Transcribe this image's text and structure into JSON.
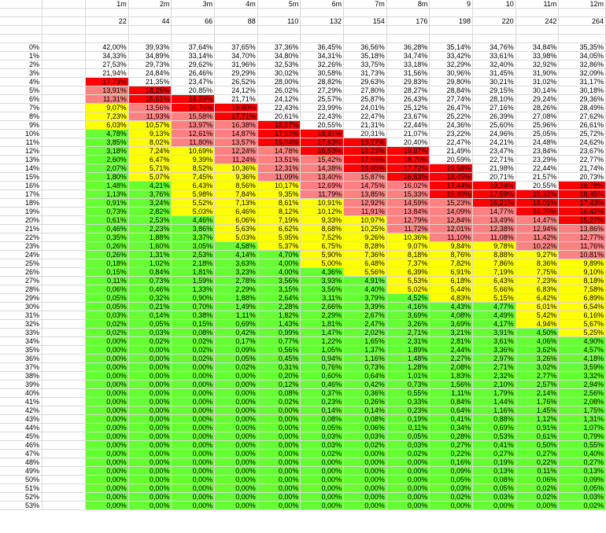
{
  "colors": {
    "red": "#ff0000",
    "pink": "#ff8080",
    "yellow": "#ffff00",
    "green": "#66ff33",
    "gridline": "#d8d8d8"
  },
  "headers": [
    "1m",
    "2m",
    "3m",
    "4m",
    "5m",
    "6m",
    "7m",
    "8m",
    "9",
    "10",
    "11m",
    "12m"
  ],
  "counts": [
    "22",
    "44",
    "66",
    "88",
    "110",
    "132",
    "154",
    "176",
    "198",
    "220",
    "242",
    "264"
  ],
  "rows": [
    {
      "label": "0%",
      "values": [
        "42,00%",
        "39,93%",
        "37,64%",
        "37,65%",
        "37,36%",
        "36,45%",
        "36,56%",
        "36,28%",
        "35,14%",
        "34,76%",
        "34,84%",
        "35,35%"
      ],
      "colors": "wwwwwwwwwwww"
    },
    {
      "label": "1%",
      "values": [
        "34,33%",
        "34,89%",
        "33,14%",
        "34,70%",
        "34,80%",
        "34,31%",
        "35,18%",
        "34,74%",
        "33,42%",
        "33,61%",
        "33,98%",
        "34,05%"
      ],
      "colors": "wwwwwwwwwwww"
    },
    {
      "label": "2%",
      "values": [
        "27,53%",
        "29,73%",
        "29,62%",
        "31,96%",
        "32,53%",
        "32,26%",
        "33,75%",
        "33,18%",
        "32,29%",
        "32,40%",
        "32,92%",
        "32,86%"
      ],
      "colors": "wwwwwwwwwwww"
    },
    {
      "label": "3%",
      "values": [
        "21,94%",
        "24,84%",
        "26,46%",
        "29,29%",
        "30,02%",
        "30,58%",
        "31,73%",
        "31,56%",
        "30,96%",
        "31,45%",
        "31,90%",
        "32,09%"
      ],
      "colors": "wwwwwwwwwwww"
    },
    {
      "label": "4%",
      "values": [
        "17,73%",
        "21,35%",
        "23,47%",
        "26,52%",
        "28,00%",
        "28,82%",
        "29,63%",
        "29,83%",
        "29,80%",
        "30,21%",
        "31,02%",
        "31,17%"
      ],
      "colors": "Rwwwwwwwwwww"
    },
    {
      "label": "5%",
      "values": [
        "13,91%",
        "18,25%",
        "20,85%",
        "24,12%",
        "26,02%",
        "27,29%",
        "27,80%",
        "28,27%",
        "28,84%",
        "29,15%",
        "30,14%",
        "30,18%"
      ],
      "colors": "PRwwwwwwwwww"
    },
    {
      "label": "6%",
      "values": [
        "11,31%",
        "15,61%",
        "18,59%",
        "21,71%",
        "24,12%",
        "25,57%",
        "25,87%",
        "26,43%",
        "27,74%",
        "28,10%",
        "29,24%",
        "29,36%"
      ],
      "colors": "PRRwwwwwwwww"
    },
    {
      "label": "7%",
      "values": [
        "9,07%",
        "13,56%",
        "16,76%",
        "19,60%",
        "22,43%",
        "23,99%",
        "24,01%",
        "25,12%",
        "26,47%",
        "27,16%",
        "28,26%",
        "28,49%"
      ],
      "colors": "YPRRwwwwwwww"
    },
    {
      "label": "8%",
      "values": [
        "7,23%",
        "11,93%",
        "15,58%",
        "17,71%",
        "20,61%",
        "22,43%",
        "22,47%",
        "23,67%",
        "25,22%",
        "26,39%",
        "27,08%",
        "27,62%"
      ],
      "colors": "YPPRwwwwwwww"
    },
    {
      "label": "9%",
      "values": [
        "6,03%",
        "10,57%",
        "13,97%",
        "16,38%",
        "18,97%",
        "20,55%",
        "21,31%",
        "22,44%",
        "24,36%",
        "25,60%",
        "25,96%",
        "26,61%"
      ],
      "colors": "YYPPRwwwwwww"
    },
    {
      "label": "10%",
      "values": [
        "4,78%",
        "9,13%",
        "12,61%",
        "14,87%",
        "17,58%",
        "18,91%",
        "20,31%",
        "21,07%",
        "23,22%",
        "24,96%",
        "25,05%",
        "25,72%"
      ],
      "colors": "GYPPRRwwwwww"
    },
    {
      "label": "11%",
      "values": [
        "3,85%",
        "8,02%",
        "11,80%",
        "13,57%",
        "16,04%",
        "17,63%",
        "19,27%",
        "20,40%",
        "22,47%",
        "24,21%",
        "24,48%",
        "24,62%"
      ],
      "colors": "GYPPRRRwwwww"
    },
    {
      "label": "12%",
      "values": [
        "3,18%",
        "7,24%",
        "10,69%",
        "12,24%",
        "14,78%",
        "16,53%",
        "18,23%",
        "19,87%",
        "21,49%",
        "23,47%",
        "23,84%",
        "23,67%"
      ],
      "colors": "GYYPPRRRwwww"
    },
    {
      "label": "13%",
      "values": [
        "2,60%",
        "6,47%",
        "9,39%",
        "11,24%",
        "13,51%",
        "15,42%",
        "17,55%",
        "18,70%",
        "20,59%",
        "22,71%",
        "23,29%",
        "22,77%"
      ],
      "colors": "GYYPPPRRwwww"
    },
    {
      "label": "14%",
      "values": [
        "2,07%",
        "5,71%",
        "8,52%",
        "10,36%",
        "12,31%",
        "14,38%",
        "16,65%",
        "17,72%",
        "19,68%",
        "21,98%",
        "22,44%",
        "21,74%"
      ],
      "colors": "GYYYPPRRRwww"
    },
    {
      "label": "15%",
      "values": [
        "1,80%",
        "5,07%",
        "7,45%",
        "9,36%",
        "11,09%",
        "13,40%",
        "15,87%",
        "16,83%",
        "18,45%",
        "20,71%",
        "21,57%",
        "20,73%"
      ],
      "colors": "GYYYPPPRRwww"
    },
    {
      "label": "16%",
      "values": [
        "1,48%",
        "4,21%",
        "6,43%",
        "8,56%",
        "10,17%",
        "12,69%",
        "14,75%",
        "16,02%",
        "17,44%",
        "19,24%",
        "20,55%",
        "19,78%"
      ],
      "colors": "GGYYYPPPRRwR"
    },
    {
      "label": "17%",
      "values": [
        "1,13%",
        "3,76%",
        "5,98%",
        "7,84%",
        "9,35%",
        "11,79%",
        "13,85%",
        "15,33%",
        "16,40%",
        "17,59%",
        "19,32%",
        "18,45%"
      ],
      "colors": "GGYYYPPPRRRR"
    },
    {
      "label": "18%",
      "values": [
        "0,91%",
        "3,24%",
        "5,52%",
        "7,13%",
        "8,61%",
        "10,91%",
        "12,92%",
        "14,59%",
        "15,23%",
        "16,21%",
        "18,01%",
        "17,43%"
      ],
      "colors": "GGYYYYPPPRRR"
    },
    {
      "label": "19%",
      "values": [
        "0,73%",
        "2,82%",
        "5,03%",
        "6,46%",
        "8,12%",
        "10,12%",
        "11,91%",
        "13,84%",
        "14,09%",
        "14,77%",
        "16,39%",
        "16,42%"
      ],
      "colors": "GGYYYYPPPPRR"
    },
    {
      "label": "20%",
      "values": [
        "0,61%",
        "2,53%",
        "4,46%",
        "6,06%",
        "7,19%",
        "9,33%",
        "10,97%",
        "12,79%",
        "12,84%",
        "13,49%",
        "14,47%",
        "15,27%"
      ],
      "colors": "GGGYYYYPPPPR"
    },
    {
      "label": "21%",
      "values": [
        "0,46%",
        "2,23%",
        "3,86%",
        "5,63%",
        "6,62%",
        "8,68%",
        "10,25%",
        "11,72%",
        "12,01%",
        "12,38%",
        "12,94%",
        "13,86%"
      ],
      "colors": "GGGYYYYPPPPP"
    },
    {
      "label": "22%",
      "values": [
        "0,35%",
        "1,88%",
        "3,37%",
        "5,03%",
        "5,95%",
        "7,52%",
        "9,26%",
        "10,36%",
        "11,10%",
        "11,08%",
        "11,42%",
        "12,77%"
      ],
      "colors": "GGGYYYYYPPPP"
    },
    {
      "label": "23%",
      "values": [
        "0,26%",
        "1,60%",
        "3,05%",
        "4,58%",
        "5,37%",
        "6,75%",
        "8,28%",
        "9,07%",
        "9,84%",
        "9,78%",
        "10,22%",
        "11,76%"
      ],
      "colors": "GGGGYYYYYYPP"
    },
    {
      "label": "24%",
      "values": [
        "0,26%",
        "1,31%",
        "2,53%",
        "4,14%",
        "4,70%",
        "5,90%",
        "7,36%",
        "8,18%",
        "8,76%",
        "8,88%",
        "9,27%",
        "10,81%"
      ],
      "colors": "GGGGGYYYYYYP"
    },
    {
      "label": "25%",
      "values": [
        "0,18%",
        "1,02%",
        "2,18%",
        "3,63%",
        "4,00%",
        "5,00%",
        "6,48%",
        "7,37%",
        "7,82%",
        "7,86%",
        "8,36%",
        "9,89%"
      ],
      "colors": "GGGGGYYYYYYY"
    },
    {
      "label": "26%",
      "values": [
        "0,15%",
        "0,84%",
        "1,81%",
        "3,23%",
        "4,00%",
        "4,36%",
        "5,56%",
        "6,39%",
        "6,91%",
        "7,19%",
        "7,75%",
        "9,10%"
      ],
      "colors": "GGGGGGYYYYYY"
    },
    {
      "label": "27%",
      "values": [
        "0,11%",
        "0,73%",
        "1,59%",
        "2,78%",
        "3,56%",
        "3,93%",
        "4,91%",
        "5,53%",
        "6,18%",
        "6,43%",
        "7,23%",
        "8,18%"
      ],
      "colors": "GGGGGGGYYYYY"
    },
    {
      "label": "28%",
      "values": [
        "0,06%",
        "0,46%",
        "1,33%",
        "2,29%",
        "3,15%",
        "3,56%",
        "4,40%",
        "5,02%",
        "5,44%",
        "5,66%",
        "6,83%",
        "7,58%"
      ],
      "colors": "GGGGGGGYYYYY"
    },
    {
      "label": "29%",
      "values": [
        "0,05%",
        "0,32%",
        "0,90%",
        "1,88%",
        "2,64%",
        "3,11%",
        "3,79%",
        "4,52%",
        "4,83%",
        "5,15%",
        "6,42%",
        "6,89%"
      ],
      "colors": "GGGGGGGGYYYY"
    },
    {
      "label": "30%",
      "values": [
        "0,05%",
        "0,21%",
        "0,70%",
        "1,49%",
        "2,28%",
        "2,66%",
        "3,39%",
        "4,16%",
        "4,43%",
        "4,77%",
        "6,01%",
        "6,54%"
      ],
      "colors": "GGGGGGGGGGYY"
    },
    {
      "label": "31%",
      "values": [
        "0,03%",
        "0,14%",
        "0,38%",
        "1,11%",
        "1,82%",
        "2,29%",
        "2,67%",
        "3,69%",
        "4,08%",
        "4,49%",
        "5,42%",
        "6,16%"
      ],
      "colors": "GGGGGGGGGGYY"
    },
    {
      "label": "32%",
      "values": [
        "0,02%",
        "0,05%",
        "0,15%",
        "0,69%",
        "1,43%",
        "1,81%",
        "2,47%",
        "3,26%",
        "3,69%",
        "4,17%",
        "4,94%",
        "5,67%"
      ],
      "colors": "GGGGGGGGGGYY"
    },
    {
      "label": "33%",
      "values": [
        "0,02%",
        "0,03%",
        "0,08%",
        "0,42%",
        "0,99%",
        "1,47%",
        "2,02%",
        "2,71%",
        "3,21%",
        "3,91%",
        "4,50%",
        "5,25%"
      ],
      "colors": "GGGGGGGGGGGY"
    },
    {
      "label": "34%",
      "values": [
        "0,00%",
        "0,02%",
        "0,02%",
        "0,17%",
        "0,77%",
        "1,22%",
        "1,65%",
        "2,31%",
        "2,81%",
        "3,61%",
        "4,06%",
        "4,90%"
      ],
      "colors": "GGGGGGGGGGGG"
    },
    {
      "label": "35%",
      "values": [
        "0,00%",
        "0,00%",
        "0,02%",
        "0,09%",
        "0,56%",
        "1,05%",
        "1,37%",
        "1,89%",
        "2,44%",
        "3,36%",
        "3,62%",
        "4,57%"
      ],
      "colors": "GGGGGGGGGGGG"
    },
    {
      "label": "36%",
      "values": [
        "0,00%",
        "0,00%",
        "0,02%",
        "0,05%",
        "0,45%",
        "0,94%",
        "1,16%",
        "1,48%",
        "2,27%",
        "2,97%",
        "3,26%",
        "4,18%"
      ],
      "colors": "GGGGGGGGGGGG"
    },
    {
      "label": "37%",
      "values": [
        "0,00%",
        "0,00%",
        "0,00%",
        "0,02%",
        "0,31%",
        "0,76%",
        "0,73%",
        "1,28%",
        "2,08%",
        "2,71%",
        "3,02%",
        "3,59%"
      ],
      "colors": "GGGGGGGGGGGG"
    },
    {
      "label": "38%",
      "values": [
        "0,00%",
        "0,00%",
        "0,00%",
        "0,00%",
        "0,20%",
        "0,60%",
        "0,64%",
        "1,01%",
        "1,83%",
        "2,32%",
        "2,77%",
        "3,32%"
      ],
      "colors": "GGGGGGGGGGGG"
    },
    {
      "label": "39%",
      "values": [
        "0,00%",
        "0,00%",
        "0,00%",
        "0,00%",
        "0,12%",
        "0,46%",
        "0,42%",
        "0,73%",
        "1,56%",
        "2,10%",
        "2,57%",
        "2,94%"
      ],
      "colors": "GGGGGGGGGGGG"
    },
    {
      "label": "40%",
      "values": [
        "0,00%",
        "0,00%",
        "0,00%",
        "0,00%",
        "0,08%",
        "0,37%",
        "0,36%",
        "0,55%",
        "1,11%",
        "1,79%",
        "2,14%",
        "2,56%"
      ],
      "colors": "GGGGGGGGGGGG"
    },
    {
      "label": "41%",
      "values": [
        "0,00%",
        "0,00%",
        "0,00%",
        "0,00%",
        "0,02%",
        "0,23%",
        "0,26%",
        "0,33%",
        "0,84%",
        "1,44%",
        "1,76%",
        "2,08%"
      ],
      "colors": "GGGGGGGGGGGG"
    },
    {
      "label": "42%",
      "values": [
        "0,00%",
        "0,00%",
        "0,00%",
        "0,00%",
        "0,00%",
        "0,14%",
        "0,14%",
        "0,23%",
        "0,64%",
        "1,16%",
        "1,45%",
        "1,75%"
      ],
      "colors": "GGGGGGGGGGGG"
    },
    {
      "label": "43%",
      "values": [
        "0,00%",
        "0,00%",
        "0,00%",
        "0,00%",
        "0,00%",
        "0,08%",
        "0,08%",
        "0,19%",
        "0,41%",
        "0,88%",
        "1,12%",
        "1,31%"
      ],
      "colors": "GGGGGGGGGGGG"
    },
    {
      "label": "44%",
      "values": [
        "0,00%",
        "0,00%",
        "0,00%",
        "0,00%",
        "0,00%",
        "0,05%",
        "0,06%",
        "0,11%",
        "0,34%",
        "0,69%",
        "0,91%",
        "1,07%"
      ],
      "colors": "GGGGGGGGGGGG"
    },
    {
      "label": "45%",
      "values": [
        "0,00%",
        "0,00%",
        "0,00%",
        "0,00%",
        "0,00%",
        "0,03%",
        "0,03%",
        "0,05%",
        "0,28%",
        "0,53%",
        "0,61%",
        "0,79%"
      ],
      "colors": "GGGGGGGGGGGG"
    },
    {
      "label": "46%",
      "values": [
        "0,00%",
        "0,00%",
        "0,00%",
        "0,00%",
        "0,00%",
        "0,03%",
        "0,02%",
        "0,03%",
        "0,27%",
        "0,41%",
        "0,50%",
        "0,55%"
      ],
      "colors": "GGGGGGGGGGGG"
    },
    {
      "label": "47%",
      "values": [
        "0,00%",
        "0,00%",
        "0,00%",
        "0,00%",
        "0,00%",
        "0,02%",
        "0,00%",
        "0,02%",
        "0,22%",
        "0,27%",
        "0,27%",
        "0,40%"
      ],
      "colors": "GGGGGGGGGGGG"
    },
    {
      "label": "48%",
      "values": [
        "0,00%",
        "0,00%",
        "0,00%",
        "0,00%",
        "0,00%",
        "0,00%",
        "0,00%",
        "0,00%",
        "0,16%",
        "0,19%",
        "0,22%",
        "0,27%"
      ],
      "colors": "GGGGGGGGGGGG"
    },
    {
      "label": "49%",
      "values": [
        "0,00%",
        "0,00%",
        "0,00%",
        "0,00%",
        "0,00%",
        "0,00%",
        "0,00%",
        "0,00%",
        "0,09%",
        "0,13%",
        "0,11%",
        "0,13%"
      ],
      "colors": "GGGGGGGGGGGG"
    },
    {
      "label": "50%",
      "values": [
        "0,00%",
        "0,00%",
        "0,00%",
        "0,00%",
        "0,00%",
        "0,00%",
        "0,00%",
        "0,00%",
        "0,05%",
        "0,08%",
        "0,06%",
        "0,09%"
      ],
      "colors": "GGGGGGGGGGGG"
    },
    {
      "label": "51%",
      "values": [
        "0,00%",
        "0,00%",
        "0,00%",
        "0,00%",
        "0,00%",
        "0,00%",
        "0,00%",
        "0,00%",
        "0,03%",
        "0,05%",
        "0,02%",
        "0,05%"
      ],
      "colors": "GGGGGGGGGGGG"
    },
    {
      "label": "52%",
      "values": [
        "0,00%",
        "0,00%",
        "0,00%",
        "0,00%",
        "0,00%",
        "0,00%",
        "0,00%",
        "0,00%",
        "0,02%",
        "0,03%",
        "0,02%",
        "0,03%"
      ],
      "colors": "GGGGGGGGGGGG"
    },
    {
      "label": "53%",
      "values": [
        "0,00%",
        "0,00%",
        "0,00%",
        "0,00%",
        "0,00%",
        "0,00%",
        "0,00%",
        "0,00%",
        "0,00%",
        "0,00%",
        "0,00%",
        "0,02%"
      ],
      "colors": "GGGGGGGGGGGG"
    }
  ]
}
